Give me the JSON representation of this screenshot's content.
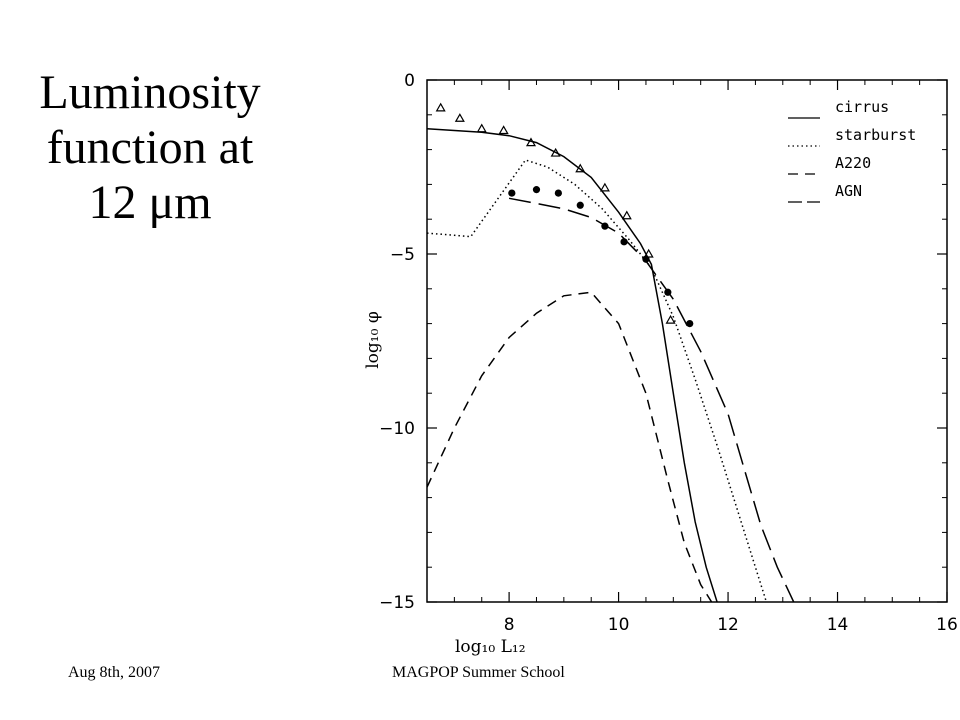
{
  "slide": {
    "title_lines": [
      "Luminosity",
      "function at",
      "12 μm"
    ],
    "footer_left": "Aug 8th, 2007",
    "footer_center": "MAGPOP Summer School"
  },
  "chart_data": {
    "type": "line",
    "xlabel": "log₁₀ L₁₂",
    "ylabel": "log₁₀ φ",
    "xlim": [
      6.5,
      16
    ],
    "ylim": [
      -15,
      0
    ],
    "xticks": [
      "8",
      "10",
      "12",
      "14",
      "16"
    ],
    "yticks": [
      "0",
      "−5",
      "−10",
      "−15"
    ],
    "legend_position": "top-right",
    "series": [
      {
        "name": "cirrus",
        "style": "solid",
        "x": [
          6.5,
          7.0,
          7.5,
          8.0,
          8.5,
          9.0,
          9.5,
          10.0,
          10.4,
          10.6,
          10.8,
          11.0,
          11.2,
          11.4,
          11.6,
          11.8
        ],
        "y": [
          -1.4,
          -1.45,
          -1.5,
          -1.6,
          -1.8,
          -2.2,
          -2.8,
          -3.8,
          -4.7,
          -5.3,
          -7.0,
          -9.0,
          -11.0,
          -12.7,
          -14.0,
          -15.0
        ]
      },
      {
        "name": "starburst",
        "style": "dotted",
        "x": [
          6.5,
          7.3,
          8.3,
          8.7,
          9.2,
          9.7,
          10.2,
          10.6,
          11.0,
          11.4,
          11.8,
          12.2,
          12.5,
          12.7
        ],
        "y": [
          -4.4,
          -4.5,
          -2.3,
          -2.5,
          -3.0,
          -3.7,
          -4.6,
          -5.4,
          -6.8,
          -8.6,
          -10.5,
          -12.5,
          -14.0,
          -15.0
        ]
      },
      {
        "name": "A220",
        "style": "dashed",
        "x": [
          6.5,
          7.0,
          7.5,
          8.0,
          8.5,
          9.0,
          9.5,
          10.0,
          10.5,
          10.9,
          11.2,
          11.5,
          11.7
        ],
        "y": [
          -11.7,
          -10.0,
          -8.5,
          -7.4,
          -6.7,
          -6.2,
          -6.1,
          -7.0,
          -9.0,
          -11.5,
          -13.3,
          -14.5,
          -15.0
        ]
      },
      {
        "name": "AGN",
        "style": "long-dash",
        "x": [
          8.0,
          8.5,
          9.0,
          9.5,
          10.0,
          10.5,
          11.0,
          11.5,
          12.0,
          12.3,
          12.6,
          12.9,
          13.2
        ],
        "y": [
          -3.4,
          -3.55,
          -3.7,
          -3.95,
          -4.4,
          -5.2,
          -6.3,
          -7.8,
          -9.6,
          -11.2,
          -12.8,
          -14.0,
          -15.0
        ]
      },
      {
        "name": "triangles",
        "style": "open-triangle",
        "x": [
          6.75,
          7.1,
          7.5,
          7.9,
          8.4,
          8.85,
          9.3,
          9.75,
          10.15,
          10.55,
          10.95
        ],
        "y": [
          -0.8,
          -1.1,
          -1.4,
          -1.45,
          -1.8,
          -2.1,
          -2.55,
          -3.1,
          -3.9,
          -5.0,
          -6.9
        ]
      },
      {
        "name": "filled circles",
        "style": "filled-circle",
        "x": [
          8.05,
          8.5,
          8.9,
          9.3,
          9.75,
          10.1,
          10.5,
          10.9,
          11.3
        ],
        "y": [
          -3.25,
          -3.15,
          -3.25,
          -3.6,
          -4.2,
          -4.65,
          -5.15,
          -6.1,
          -7.0
        ]
      }
    ]
  }
}
